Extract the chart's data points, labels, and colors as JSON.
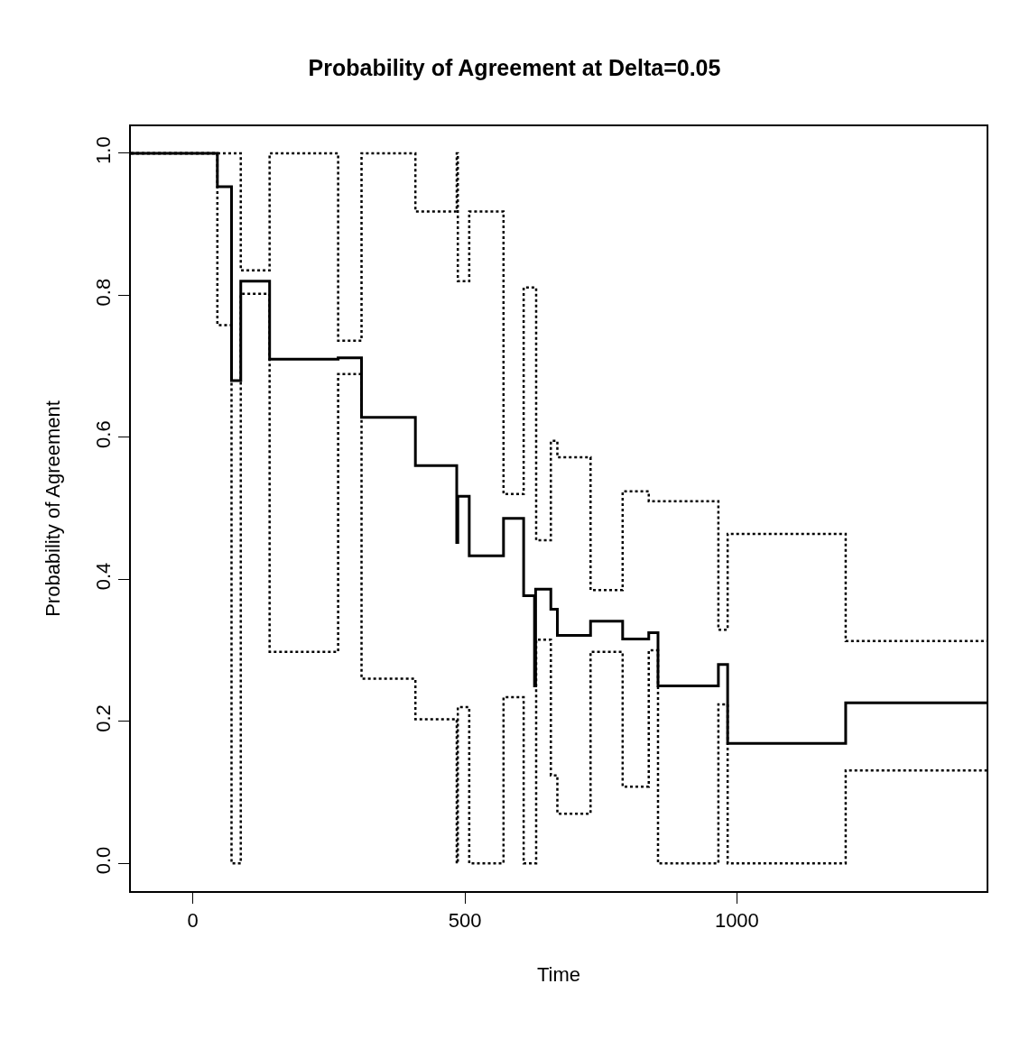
{
  "chart_data": {
    "type": "step",
    "title": "Probability of Agreement at Delta=0.05",
    "xlabel": "Time",
    "ylabel": "Probability of Agreement",
    "xlim": [
      -114,
      1459
    ],
    "ylim": [
      -0.039,
      1.038
    ],
    "xticks": [
      0,
      500,
      1000
    ],
    "yticks": [
      {
        "value": 0,
        "label": "0.0"
      },
      {
        "value": 0.2,
        "label": "0.2"
      },
      {
        "value": 0.4,
        "label": "0.4"
      },
      {
        "value": 0.6,
        "label": "0.6"
      },
      {
        "value": 0.8,
        "label": "0.8"
      },
      {
        "value": 1,
        "label": "1.0"
      }
    ],
    "series": [
      {
        "color": "#000000",
        "line_style": "solid",
        "x": [
          -114,
          45,
          71,
          88,
          141,
          267,
          310,
          409,
          485,
          487,
          508,
          571,
          608,
          628,
          630,
          658,
          670,
          731,
          790,
          838,
          855,
          966,
          983,
          1200,
          1459
        ],
        "values": [
          1.0,
          0.953,
          0.68,
          0.82,
          0.71,
          0.712,
          0.628,
          0.56,
          0.452,
          0.517,
          0.433,
          0.486,
          0.377,
          0.25,
          0.386,
          0.358,
          0.321,
          0.341,
          0.316,
          0.325,
          0.25,
          0.28,
          0.169,
          0.226,
          0.226
        ]
      },
      {
        "color": "#000000",
        "line_style": "dotted",
        "x": [
          -114,
          88,
          141,
          267,
          310,
          409,
          485,
          487,
          508,
          571,
          608,
          631,
          658,
          670,
          731,
          790,
          838,
          966,
          983,
          1200,
          1459
        ],
        "values": [
          1.0,
          0.835,
          1.0,
          0.736,
          1.0,
          0.918,
          1.0,
          0.82,
          0.918,
          0.52,
          0.811,
          0.455,
          0.595,
          0.572,
          0.385,
          0.524,
          0.51,
          0.329,
          0.464,
          0.313,
          0.313
        ]
      },
      {
        "color": "#000000",
        "line_style": "dotted",
        "x": [
          -114,
          45,
          71,
          88,
          141,
          267,
          310,
          409,
          485,
          487,
          508,
          571,
          608,
          631,
          658,
          670,
          731,
          790,
          838,
          855,
          966,
          983,
          1200,
          1459
        ],
        "values": [
          1.0,
          0.758,
          0.0,
          0.802,
          0.298,
          0.689,
          0.26,
          0.203,
          0.0,
          0.22,
          0.0,
          0.234,
          0.0,
          0.315,
          0.124,
          0.07,
          0.298,
          0.108,
          0.3,
          0.0,
          0.224,
          0.0,
          0.131,
          0.131
        ]
      }
    ]
  }
}
